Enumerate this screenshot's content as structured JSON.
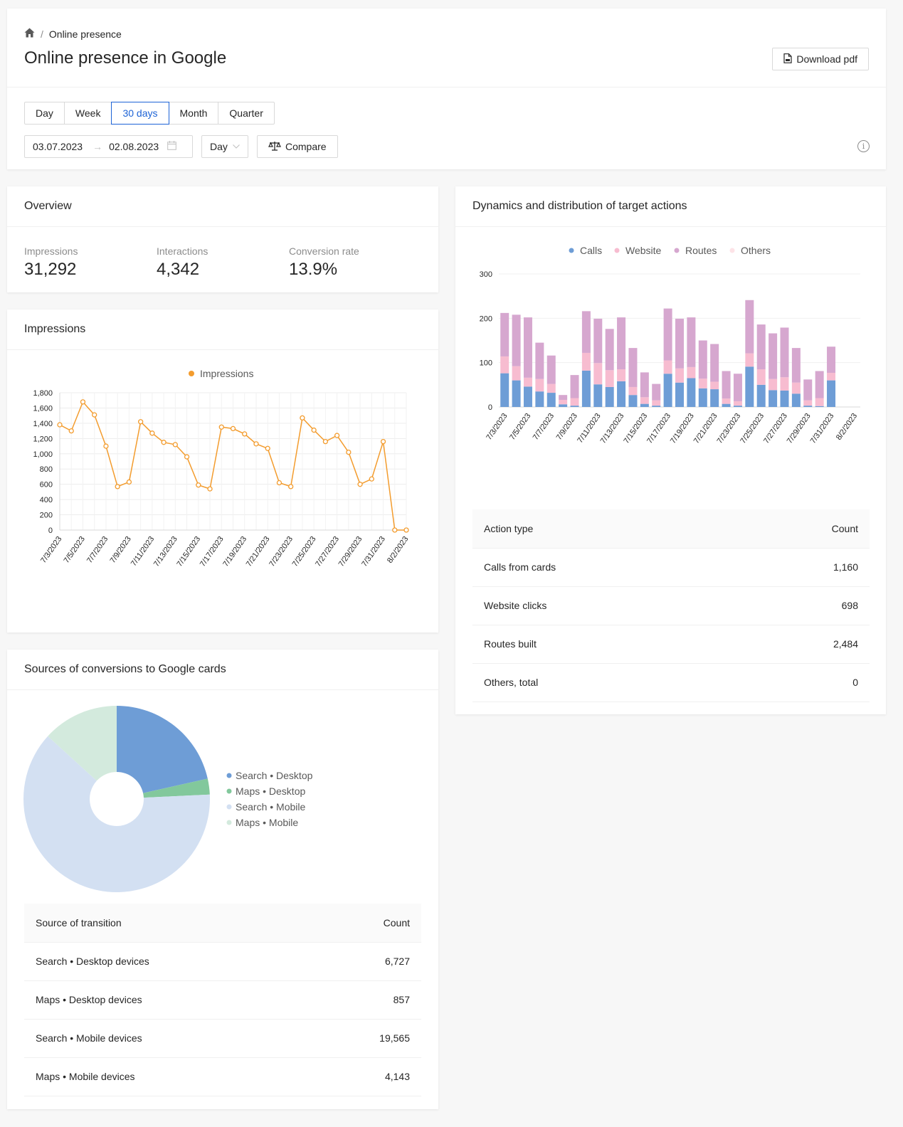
{
  "breadcrumb": {
    "current": "Online presence"
  },
  "page_title": "Online presence in Google",
  "download_label": "Download pdf",
  "period_tabs": [
    {
      "label": "Day",
      "active": false
    },
    {
      "label": "Week",
      "active": false
    },
    {
      "label": "30 days",
      "active": true
    },
    {
      "label": "Month",
      "active": false
    },
    {
      "label": "Quarter",
      "active": false
    }
  ],
  "date_range": {
    "start": "03.07.2023",
    "end": "02.08.2023"
  },
  "granularity": "Day",
  "compare_label": "Compare",
  "colors": {
    "accent": "#1d63d6",
    "impressions": "#f39c2e",
    "calls": "#6e9dd6",
    "website": "#f7bcd0",
    "routes": "#d6a7cf",
    "others": "#fde3e7"
  },
  "overview": {
    "title": "Overview",
    "stats": [
      {
        "label": "Impressions",
        "value": "31,292"
      },
      {
        "label": "Interactions",
        "value": "4,342"
      },
      {
        "label": "Conversion rate",
        "value": "13.9%"
      }
    ]
  },
  "impressions_card": {
    "title": "Impressions"
  },
  "dynamics_card": {
    "title": "Dynamics and distribution of target actions"
  },
  "sources_card": {
    "title": "Sources of conversions to Google cards"
  },
  "actions_table": {
    "headers": [
      "Action type",
      "Count"
    ],
    "rows": [
      [
        "Calls from cards",
        "1,160"
      ],
      [
        "Website clicks",
        "698"
      ],
      [
        "Routes built",
        "2,484"
      ],
      [
        "Others, total",
        "0"
      ]
    ]
  },
  "sources_table": {
    "headers": [
      "Source of transition",
      "Count"
    ],
    "rows": [
      [
        "Search • Desktop devices",
        "6,727"
      ],
      [
        "Maps • Desktop devices",
        "857"
      ],
      [
        "Search • Mobile devices",
        "19,565"
      ],
      [
        "Maps • Mobile devices",
        "4,143"
      ]
    ]
  },
  "chart_data": [
    {
      "type": "line",
      "legend": [
        "Impressions"
      ],
      "x": [
        "7/3/2023",
        "7/4/2023",
        "7/5/2023",
        "7/6/2023",
        "7/7/2023",
        "7/8/2023",
        "7/9/2023",
        "7/10/2023",
        "7/11/2023",
        "7/12/2023",
        "7/13/2023",
        "7/14/2023",
        "7/15/2023",
        "7/16/2023",
        "7/17/2023",
        "7/18/2023",
        "7/19/2023",
        "7/20/2023",
        "7/21/2023",
        "7/22/2023",
        "7/23/2023",
        "7/24/2023",
        "7/25/2023",
        "7/26/2023",
        "7/27/2023",
        "7/28/2023",
        "7/29/2023",
        "7/30/2023",
        "7/31/2023",
        "8/1/2023",
        "8/2/2023"
      ],
      "x_tick_labels": [
        "7/3/2023",
        "7/5/2023",
        "7/7/2023",
        "7/9/2023",
        "7/11/2023",
        "7/13/2023",
        "7/15/2023",
        "7/17/2023",
        "7/19/2023",
        "7/21/2023",
        "7/23/2023",
        "7/25/2023",
        "7/27/2023",
        "7/29/2023",
        "7/31/2023",
        "8/2/2023"
      ],
      "series": [
        {
          "name": "Impressions",
          "values": [
            1380,
            1300,
            1680,
            1510,
            1100,
            570,
            630,
            1420,
            1270,
            1150,
            1120,
            960,
            590,
            540,
            1350,
            1330,
            1260,
            1130,
            1070,
            620,
            570,
            1470,
            1310,
            1160,
            1240,
            1020,
            600,
            670,
            1160,
            0,
            0
          ]
        }
      ],
      "y_ticks": [
        "0",
        "200",
        "400",
        "600",
        "800",
        "1,000",
        "1,200",
        "1,400",
        "1,600",
        "1,800"
      ],
      "ylim": [
        0,
        1800
      ],
      "grid": true,
      "legend_position": "top"
    },
    {
      "type": "bar",
      "stacked": true,
      "legend": [
        "Calls",
        "Website",
        "Routes",
        "Others"
      ],
      "x": [
        "7/3/2023",
        "7/4/2023",
        "7/5/2023",
        "7/6/2023",
        "7/7/2023",
        "7/8/2023",
        "7/9/2023",
        "7/10/2023",
        "7/11/2023",
        "7/12/2023",
        "7/13/2023",
        "7/14/2023",
        "7/15/2023",
        "7/16/2023",
        "7/17/2023",
        "7/18/2023",
        "7/19/2023",
        "7/20/2023",
        "7/21/2023",
        "7/22/2023",
        "7/23/2023",
        "7/24/2023",
        "7/25/2023",
        "7/26/2023",
        "7/27/2023",
        "7/28/2023",
        "7/29/2023",
        "7/30/2023",
        "7/31/2023",
        "8/1/2023",
        "8/2/2023"
      ],
      "x_tick_labels": [
        "7/3/2023",
        "7/5/2023",
        "7/7/2023",
        "7/9/2023",
        "7/11/2023",
        "7/13/2023",
        "7/15/2023",
        "7/17/2023",
        "7/19/2023",
        "7/21/2023",
        "7/23/2023",
        "7/25/2023",
        "7/27/2023",
        "7/29/2023",
        "7/31/2023",
        "8/2/2023"
      ],
      "series": [
        {
          "name": "Calls",
          "values": [
            76,
            60,
            46,
            35,
            32,
            6,
            3,
            82,
            51,
            45,
            58,
            27,
            7,
            3,
            75,
            55,
            65,
            42,
            40,
            7,
            3,
            91,
            50,
            38,
            37,
            30,
            3,
            2,
            60,
            0,
            0
          ]
        },
        {
          "name": "Website",
          "values": [
            38,
            32,
            20,
            28,
            20,
            10,
            17,
            40,
            48,
            38,
            27,
            18,
            15,
            12,
            30,
            32,
            25,
            22,
            17,
            12,
            10,
            30,
            35,
            25,
            30,
            25,
            12,
            18,
            17,
            0,
            0
          ]
        },
        {
          "name": "Routes",
          "values": [
            98,
            116,
            136,
            82,
            64,
            11,
            52,
            94,
            100,
            93,
            117,
            88,
            56,
            37,
            117,
            112,
            112,
            86,
            85,
            62,
            62,
            120,
            101,
            103,
            112,
            78,
            47,
            61,
            59,
            0,
            0
          ]
        },
        {
          "name": "Others",
          "values": [
            0,
            0,
            0,
            0,
            0,
            0,
            0,
            0,
            0,
            0,
            0,
            0,
            0,
            0,
            0,
            0,
            0,
            0,
            0,
            0,
            0,
            0,
            0,
            0,
            0,
            0,
            0,
            0,
            0,
            0,
            0
          ]
        }
      ],
      "y_ticks": [
        "0",
        "100",
        "200",
        "300"
      ],
      "ylim": [
        0,
        300
      ],
      "grid": true,
      "legend_position": "top"
    },
    {
      "type": "pie",
      "categories": [
        "Search • Desktop",
        "Maps • Desktop",
        "Search • Mobile",
        "Maps • Mobile"
      ],
      "values": [
        6727,
        857,
        19565,
        4143
      ],
      "colors": [
        "#6e9dd6",
        "#82c89c",
        "#d3e0f2",
        "#d3eadd"
      ],
      "legend_position": "right"
    }
  ]
}
